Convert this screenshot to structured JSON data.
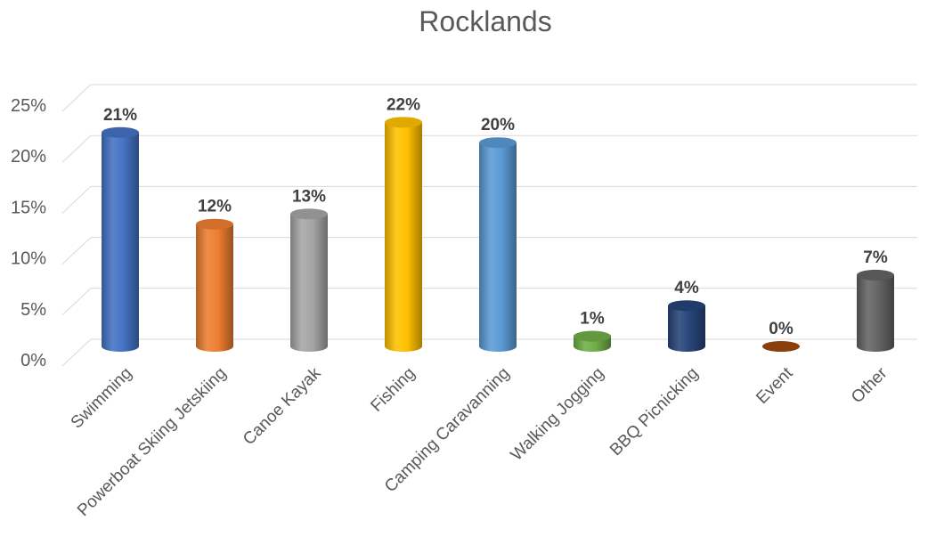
{
  "chart_data": {
    "type": "bar",
    "style": "3d-cylinder",
    "title": "Rocklands",
    "xlabel": "",
    "ylabel": "",
    "categories": [
      "Swimming",
      "Powerboat Skiing Jetskiing",
      "Canoe Kayak",
      "Fishing",
      "Camping Caravanning",
      "Walking Jogging",
      "BBQ Picnicking",
      "Event",
      "Other"
    ],
    "values": [
      21,
      12,
      13,
      22,
      20,
      1,
      4,
      0,
      7
    ],
    "data_labels": [
      "21%",
      "12%",
      "13%",
      "22%",
      "20%",
      "1%",
      "4%",
      "0%",
      "7%"
    ],
    "ylim": [
      0,
      25
    ],
    "yticks": [
      0,
      5,
      10,
      15,
      20,
      25
    ],
    "ytick_labels": [
      "0%",
      "5%",
      "10%",
      "15%",
      "20%",
      "25%"
    ],
    "grid": true,
    "legend": "none",
    "colors": [
      "#4472c4",
      "#ed7d31",
      "#a5a5a5",
      "#ffc000",
      "#5b9bd5",
      "#70ad47",
      "#264478",
      "#9e480e",
      "#636363"
    ]
  }
}
